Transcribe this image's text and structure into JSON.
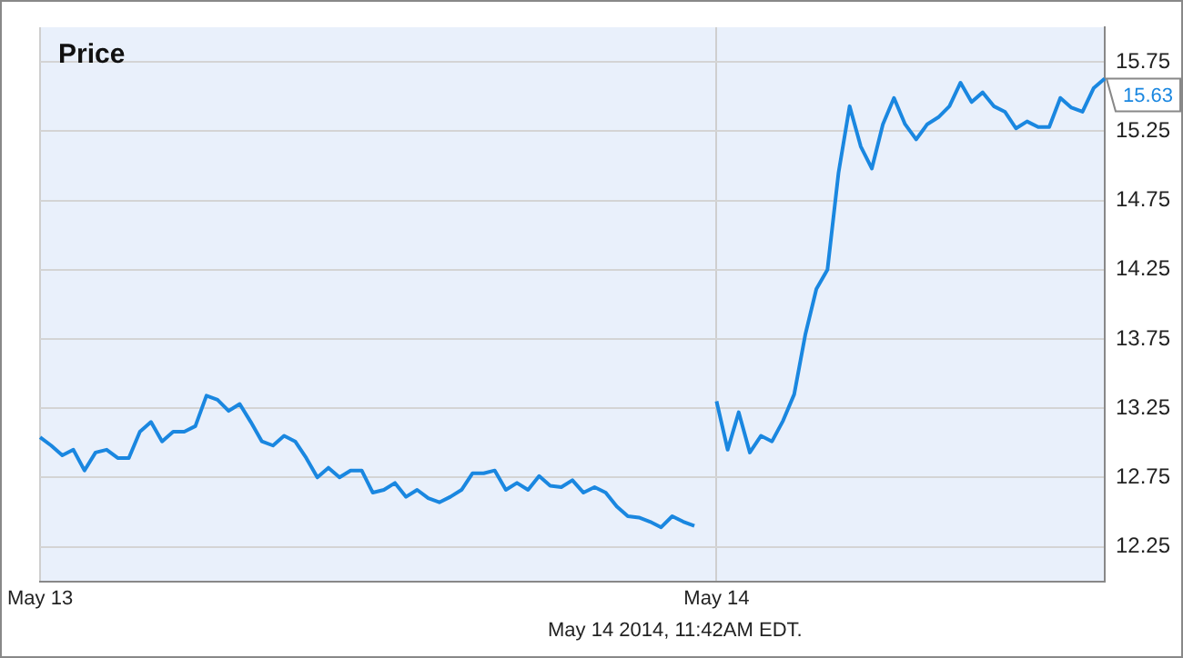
{
  "chart_data": {
    "type": "line",
    "title": "Price",
    "annotations": [
      "May 14 2014, 11:42AM EDT."
    ],
    "categories": [
      "May 13",
      null,
      null,
      null,
      null,
      null,
      null,
      null,
      null,
      null,
      null,
      null,
      null,
      null,
      null,
      null,
      null,
      null,
      null,
      null,
      null,
      null,
      null,
      null,
      null,
      null,
      null,
      null,
      null,
      null,
      null,
      null,
      null,
      null,
      null,
      null,
      null,
      null,
      null,
      null,
      null,
      null,
      null,
      null,
      null,
      null,
      null,
      null,
      null,
      null,
      null,
      null,
      null,
      null,
      null,
      null,
      null,
      null,
      null,
      null,
      null,
      "May 14",
      null,
      null,
      null,
      null,
      null,
      null,
      null,
      null,
      null,
      null,
      null,
      null,
      null,
      null,
      null,
      null,
      null,
      null,
      null,
      null,
      null,
      null,
      null,
      null,
      null,
      null,
      null,
      null,
      null,
      null,
      null,
      null,
      null,
      null,
      null
    ],
    "series": [
      {
        "color": "#1a87e0",
        "values": [
          13.04,
          12.98,
          12.91,
          12.95,
          12.8,
          12.93,
          12.95,
          12.89,
          12.89,
          13.08,
          13.15,
          13.01,
          13.08,
          13.08,
          13.12,
          13.34,
          13.31,
          13.23,
          13.28,
          13.15,
          13.01,
          12.98,
          13.05,
          13.01,
          12.89,
          12.75,
          12.82,
          12.75,
          12.8,
          12.8,
          12.64,
          12.66,
          12.71,
          12.61,
          12.66,
          12.6,
          12.57,
          12.61,
          12.66,
          12.78,
          12.78,
          12.8,
          12.66,
          12.71,
          12.66,
          12.76,
          12.69,
          12.68,
          12.73,
          12.64,
          12.68,
          12.64,
          12.54,
          12.47,
          12.46,
          12.43,
          12.39,
          12.47,
          12.43,
          12.4,
          null,
          13.3,
          12.95,
          13.22,
          12.93,
          13.05,
          13.01,
          13.16,
          13.35,
          13.78,
          14.11,
          14.25,
          14.95,
          15.43,
          15.14,
          14.98,
          15.3,
          15.49,
          15.3,
          15.19,
          15.3,
          15.35,
          15.43,
          15.6,
          15.46,
          15.53,
          15.43,
          15.39,
          15.27,
          15.32,
          15.28,
          15.28,
          15.49,
          15.42,
          15.39,
          15.56,
          15.63
        ],
        "value_labels": [
          null,
          null,
          null,
          null,
          null,
          null,
          null,
          null,
          null,
          null,
          null,
          null,
          null,
          null,
          null,
          null,
          null,
          null,
          null,
          null,
          null,
          null,
          null,
          null,
          null,
          null,
          null,
          null,
          null,
          null,
          null,
          null,
          null,
          null,
          null,
          null,
          null,
          null,
          null,
          null,
          null,
          null,
          null,
          null,
          null,
          null,
          null,
          null,
          null,
          null,
          null,
          null,
          null,
          null,
          null,
          null,
          null,
          null,
          null,
          null,
          null,
          null,
          null,
          null,
          null,
          null,
          null,
          null,
          null,
          null,
          null,
          null,
          null,
          null,
          null,
          null,
          null,
          null,
          null,
          null,
          null,
          null,
          null,
          null,
          null,
          null,
          null,
          null,
          null,
          null,
          null,
          null,
          null,
          null,
          null,
          null,
          "15.63"
        ]
      }
    ],
    "ylim": [
      12.0,
      16.0
    ],
    "yticks": [
      12.25,
      12.75,
      13.25,
      13.75,
      14.25,
      14.75,
      15.25,
      15.75
    ],
    "grid": true,
    "legend": false,
    "marker": "none",
    "line_style": "solid"
  }
}
